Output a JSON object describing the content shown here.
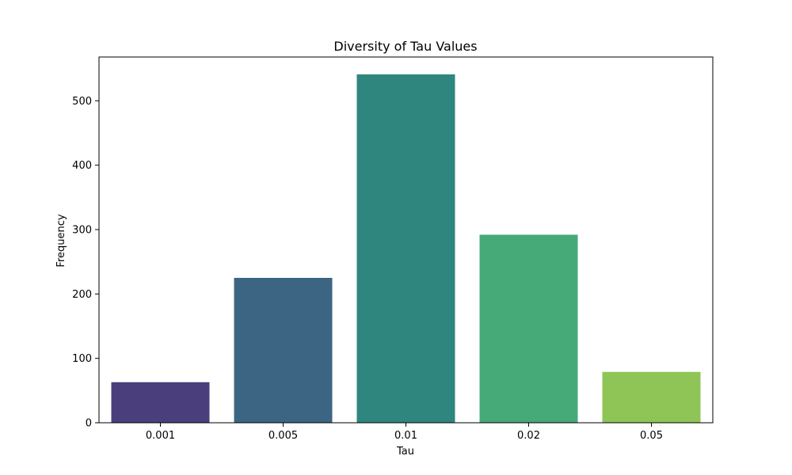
{
  "chart_data": {
    "type": "bar",
    "title": "Diversity of Tau Values",
    "xlabel": "Tau",
    "ylabel": "Frequency",
    "categories": [
      "0.001",
      "0.005",
      "0.01",
      "0.02",
      "0.05"
    ],
    "values": [
      63,
      225,
      541,
      292,
      79
    ],
    "colors": [
      "#4a3f7c",
      "#3c6583",
      "#2e867e",
      "#46a978",
      "#8ec556"
    ],
    "ylim": [
      0,
      568
    ],
    "yticks": [
      0,
      100,
      200,
      300,
      400,
      500
    ],
    "grid": false,
    "legend": "none"
  }
}
